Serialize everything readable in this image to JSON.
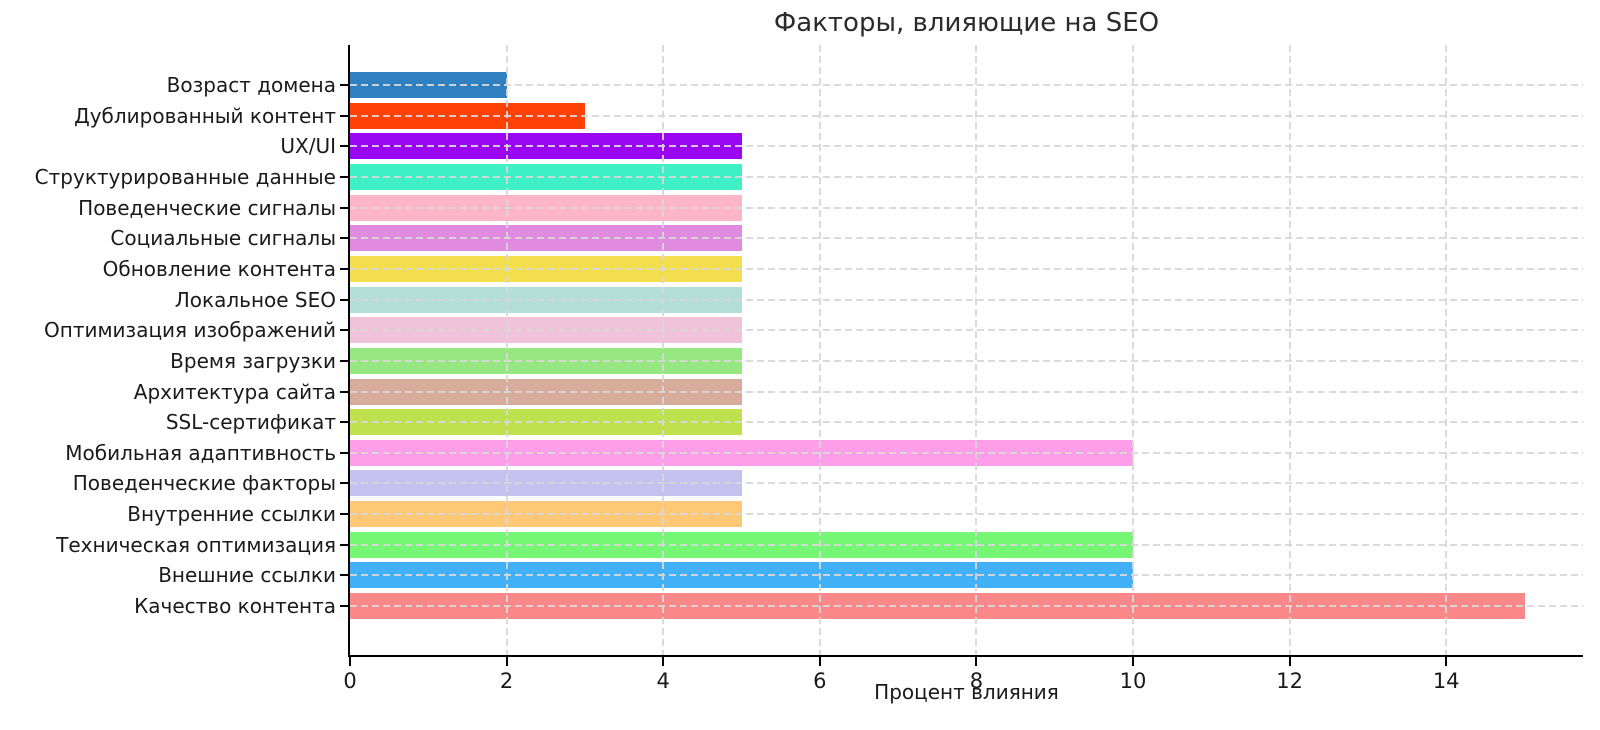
{
  "chart_data": {
    "type": "bar",
    "orientation": "horizontal",
    "title": "Факторы, влияющие на SEO",
    "xlabel": "Процент влияния",
    "ylabel": "",
    "xlim": [
      0,
      15.75
    ],
    "x_ticks": [
      0,
      2,
      4,
      6,
      8,
      10,
      12,
      14
    ],
    "grid": "dashed light-gray gridlines on both axes, drawn over the bars",
    "legend": "none",
    "categories_top_to_bottom": [
      {
        "label": "Возраст домена",
        "value": 2,
        "color": "#2e80c0"
      },
      {
        "label": "Дублированный контент",
        "value": 3,
        "color": "#fe4207"
      },
      {
        "label": "UX/UI",
        "value": 5,
        "color": "#9b06f2"
      },
      {
        "label": "Структурированные данные",
        "value": 5,
        "color": "#3fefc5"
      },
      {
        "label": "Поведенческие сигналы",
        "value": 5,
        "color": "#ffb5c8"
      },
      {
        "label": "Социальные сигналы",
        "value": 5,
        "color": "#e08ae0"
      },
      {
        "label": "Обновление контента",
        "value": 5,
        "color": "#f3df4e"
      },
      {
        "label": "Локальное SEO",
        "value": 5,
        "color": "#b4dfd9"
      },
      {
        "label": "Оптимизация изображений",
        "value": 5,
        "color": "#f1c3db"
      },
      {
        "label": "Время загрузки",
        "value": 5,
        "color": "#97e783"
      },
      {
        "label": "Архитектура сайта",
        "value": 5,
        "color": "#d8ac9b"
      },
      {
        "label": "SSL-сертификат",
        "value": 5,
        "color": "#bfe14d"
      },
      {
        "label": "Мобильная адаптивность",
        "value": 10,
        "color": "#fe9ee8"
      },
      {
        "label": "Поведенческие факторы",
        "value": 5,
        "color": "#c6c2f0"
      },
      {
        "label": "Внутренние ссылки",
        "value": 5,
        "color": "#fec877"
      },
      {
        "label": "Техническая оптимизация",
        "value": 10,
        "color": "#75f675"
      },
      {
        "label": "Внешние ссылки",
        "value": 10,
        "color": "#42b0f7"
      },
      {
        "label": "Качество контента",
        "value": 15,
        "color": "#fa8888"
      }
    ]
  }
}
